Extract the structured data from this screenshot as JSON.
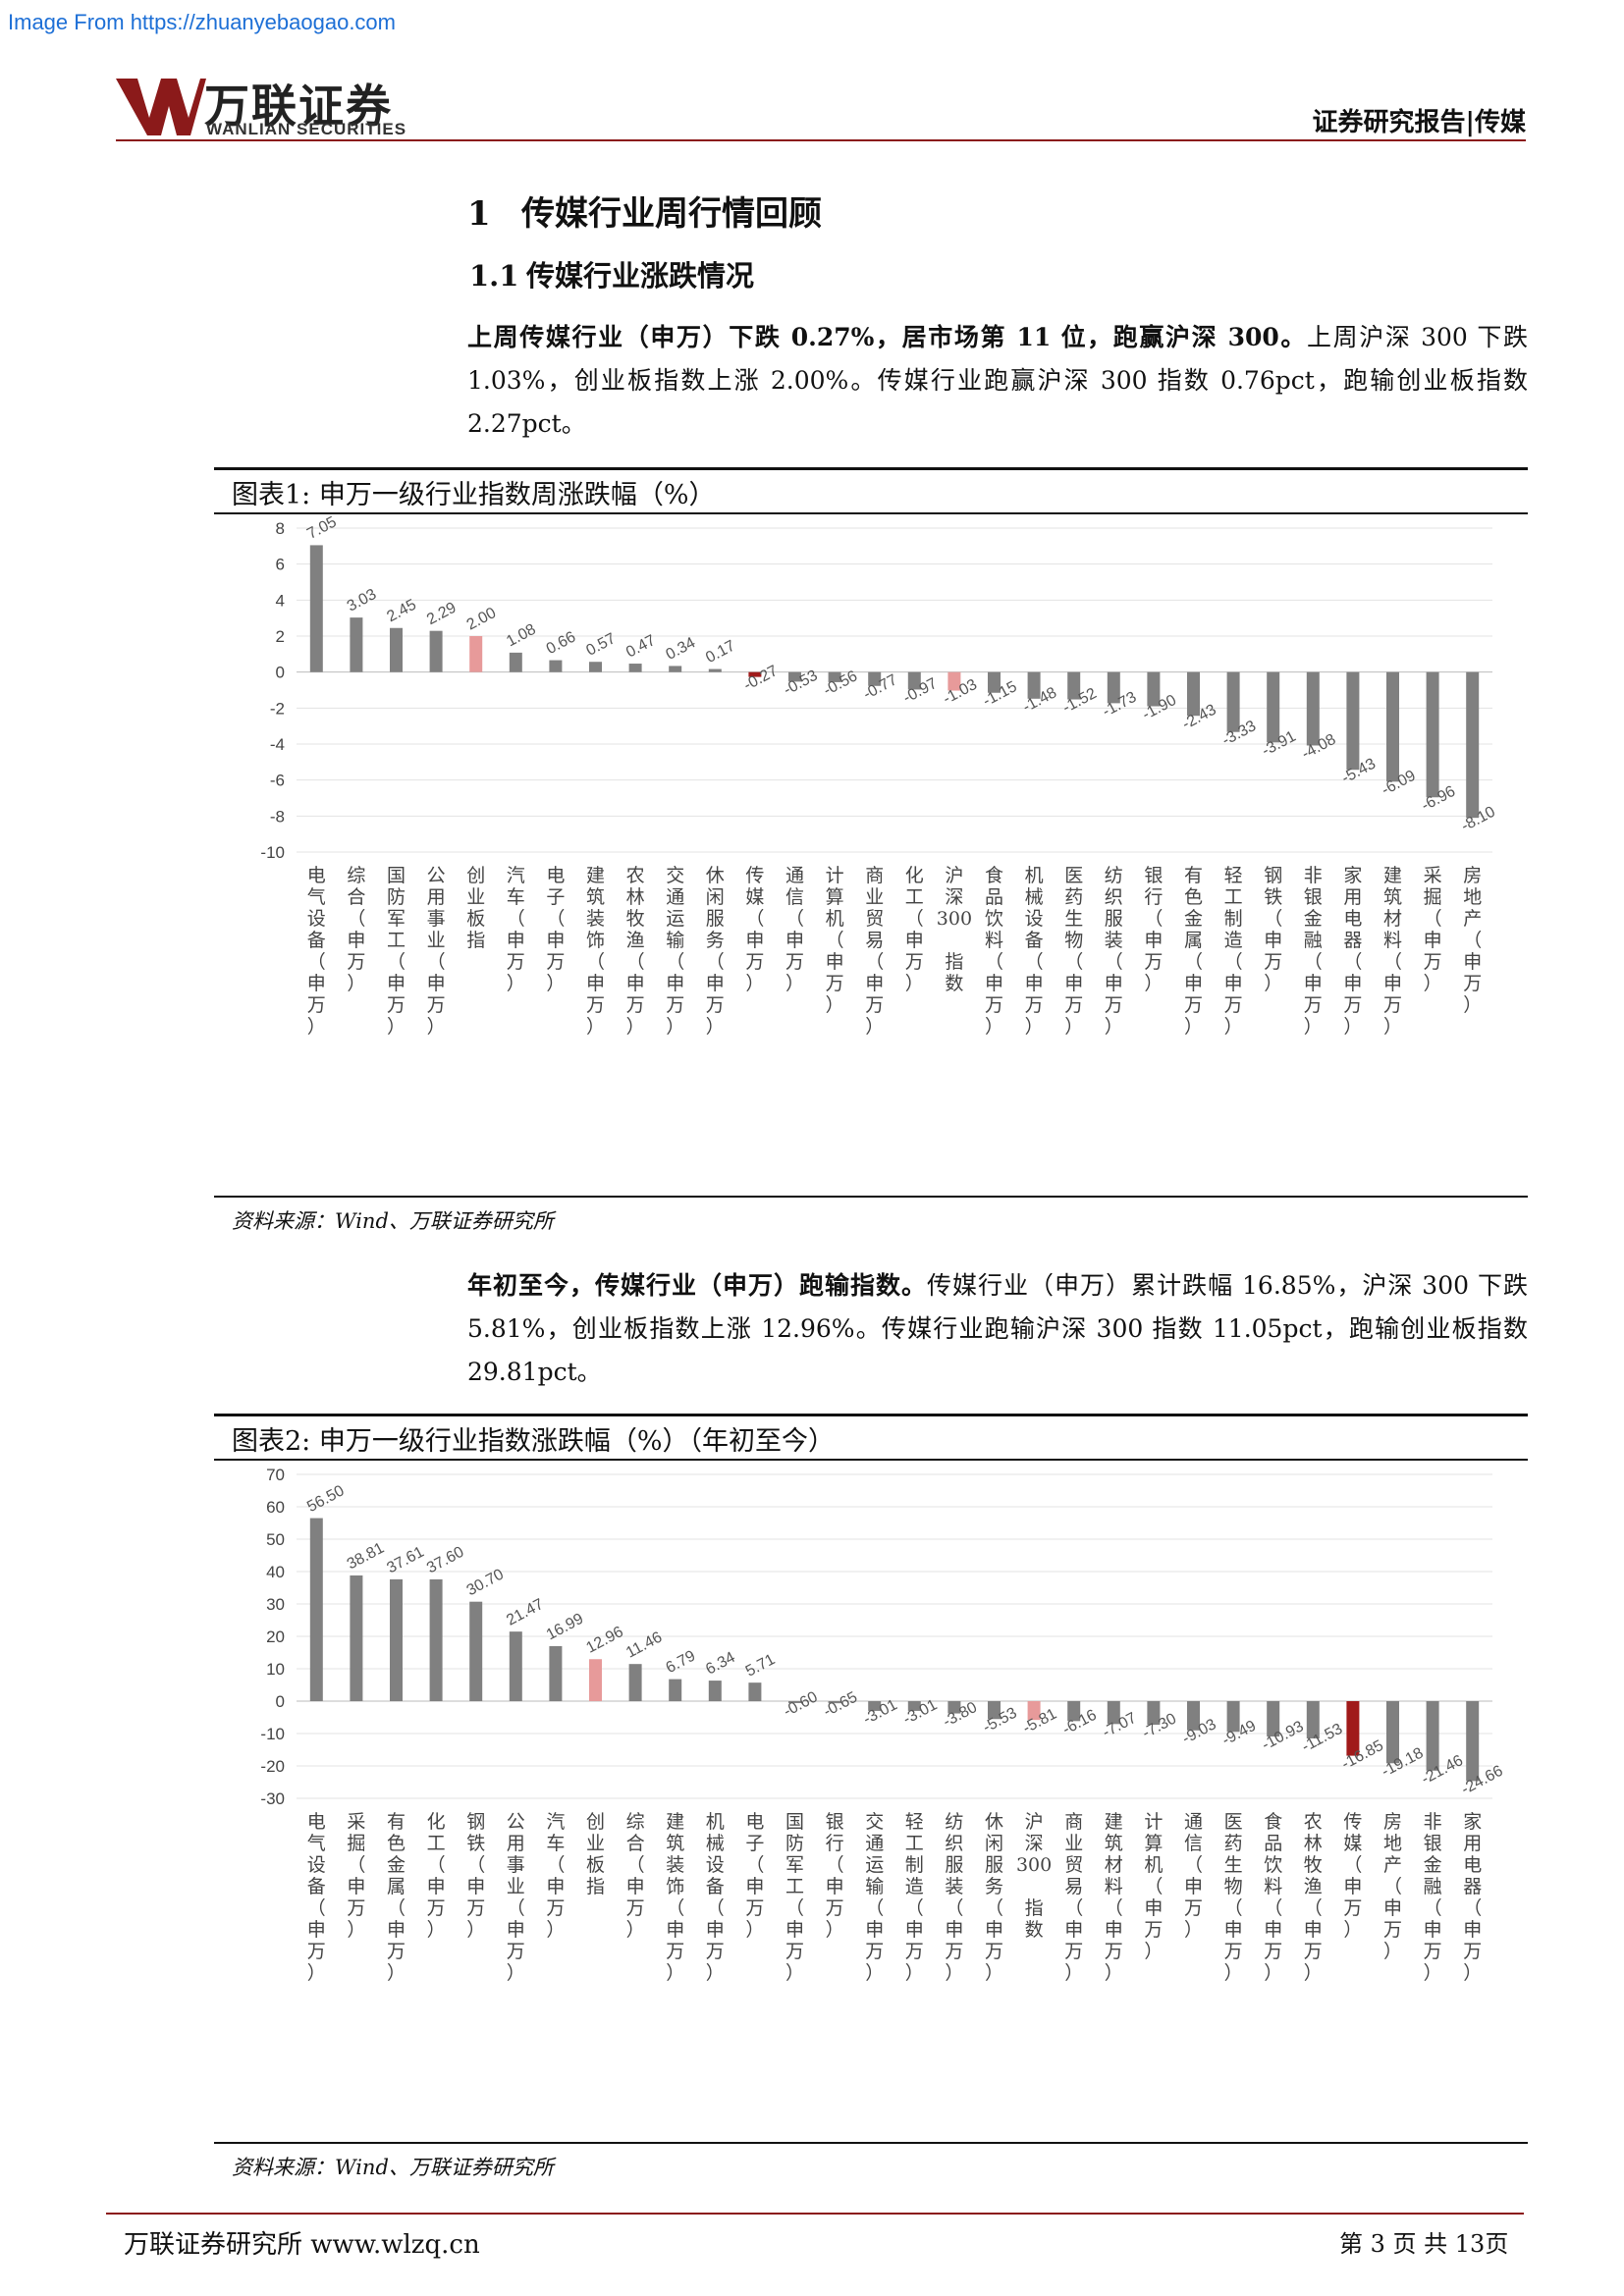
{
  "source_url": "Image From https://zhuanyebaogao.com",
  "brand": {
    "name": "万联证券",
    "name_en": "WANLIAN SECURITIES"
  },
  "header_right": "证券研究报告|传媒",
  "section": {
    "num": "1",
    "title": "传媒行业周行情回顾"
  },
  "subsection": {
    "num": "1.1",
    "title": "传媒行业涨跌情况"
  },
  "para1": {
    "bold": "上周传媒行业（申万）下跌 0.27%，居市场第 11 位，跑赢沪深 300。",
    "text": "上周沪深 300 下跌 1.03%，创业板指数上涨 2.00%。传媒行业跑赢沪深 300 指数 0.76pct，跑输创业板指数 2.27pct。"
  },
  "fig1": {
    "title": "图表1:  申万一级行业指数周涨跌幅（%）",
    "source": "资料来源：Wind、万联证券研究所"
  },
  "para2": {
    "bold": "年初至今，传媒行业（申万）跑输指数。",
    "text": "传媒行业（申万）累计跌幅 16.85%，沪深 300 下跌 5.81%，创业板指数上涨 12.96%。传媒行业跑输沪深 300 指数 11.05pct，跑输创业板指数 29.81pct。"
  },
  "fig2": {
    "title": "图表2:  申万一级行业指数涨跌幅（%）（年初至今）",
    "source": "资料来源：Wind、万联证券研究所"
  },
  "footer": {
    "left": "万联证券研究所 www.wlzq.cn",
    "right": "第 3 页 共 13页"
  },
  "colors": {
    "bar": "#808080",
    "highlight_index": "#e79a9a",
    "highlight_media": "#a01a1a"
  },
  "chart_data": [
    {
      "type": "bar",
      "ylim": [
        -10,
        8
      ],
      "yticks": [
        8,
        6,
        4,
        2,
        0,
        -2,
        -4,
        -6,
        -8,
        -10
      ],
      "grid": true,
      "categories": [
        "电气设备(申万)",
        "综合(申万)",
        "国防军工(申万)",
        "公用事业(申万)",
        "创业板指",
        "汽车(申万)",
        "电子(申万)",
        "建筑装饰(申万)",
        "农林牧渔(申万)",
        "交通运输(申万)",
        "休闲服务(申万)",
        "传媒(申万)",
        "通信(申万)",
        "计算机(申万)",
        "商业贸易(申万)",
        "化工(申万)",
        "沪深300指数",
        "食品饮料(申万)",
        "机械设备(申万)",
        "医药生物(申万)",
        "纺织服装(申万)",
        "银行(申万)",
        "有色金属(申万)",
        "轻工制造(申万)",
        "钢铁(申万)",
        "非银金融(申万)",
        "家用电器(申万)",
        "建筑材料(申万)",
        "采掘(申万)",
        "房地产(申万)"
      ],
      "values": [
        7.05,
        3.03,
        2.45,
        2.29,
        2.0,
        1.08,
        0.66,
        0.57,
        0.47,
        0.34,
        0.17,
        -0.27,
        -0.53,
        -0.56,
        -0.77,
        -0.97,
        -1.03,
        -1.15,
        -1.48,
        -1.52,
        -1.73,
        -1.9,
        -2.43,
        -3.33,
        -3.91,
        -4.08,
        -5.43,
        -6.09,
        -6.96,
        -8.1
      ],
      "labels": [
        "7.05",
        "3.03",
        "2.45",
        "2.29",
        "2.00",
        "1.08",
        "0.66",
        "0.57",
        "0.47",
        "0.34",
        "0.17",
        "-0.27",
        "-0.53",
        "-0.56",
        "-0.77",
        "-0.97",
        "-1.03",
        "-1.15",
        "-1.48",
        "-1.52",
        "-1.73",
        "-1.90",
        "-2.43",
        "-3.33",
        "-3.91",
        "-4.08",
        "-5.43",
        "-6.09",
        "-6.96",
        "-8.10"
      ],
      "highlight": {
        "创业板指": "index",
        "沪深300指数": "index",
        "传媒(申万)": "media"
      }
    },
    {
      "type": "bar",
      "ylim": [
        -30,
        70
      ],
      "yticks": [
        70,
        60,
        50,
        40,
        30,
        20,
        10,
        0,
        -10,
        -20,
        -30
      ],
      "grid": true,
      "categories": [
        "电气设备(申万)",
        "采掘(申万)",
        "有色金属(申万)",
        "化工(申万)",
        "钢铁(申万)",
        "公用事业(申万)",
        "汽车(申万)",
        "创业板指",
        "综合(申万)",
        "建筑装饰(申万)",
        "机械设备(申万)",
        "电子(申万)",
        "国防军工(申万)",
        "银行(申万)",
        "交通运输(申万)",
        "轻工制造(申万)",
        "纺织服装(申万)",
        "休闲服务(申万)",
        "沪深300指数",
        "商业贸易(申万)",
        "建筑材料(申万)",
        "计算机(申万)",
        "通信(申万)",
        "医药生物(申万)",
        "食品饮料(申万)",
        "农林牧渔(申万)",
        "传媒(申万)",
        "房地产(申万)",
        "非银金融(申万)",
        "家用电器(申万)"
      ],
      "values": [
        56.5,
        38.81,
        37.61,
        37.6,
        30.7,
        21.47,
        16.99,
        12.96,
        11.46,
        6.79,
        6.34,
        5.71,
        -0.6,
        -0.65,
        -3.01,
        -3.01,
        -3.8,
        -5.53,
        -5.81,
        -6.16,
        -7.07,
        -7.3,
        -9.03,
        -9.49,
        -10.93,
        -11.53,
        -16.85,
        -19.18,
        -21.46,
        -24.66
      ],
      "labels": [
        "56.50",
        "38.81",
        "37.61",
        "37.60",
        "30.70",
        "21.47",
        "16.99",
        "12.96",
        "11.46",
        "6.79",
        "6.34",
        "5.71",
        "-0.60",
        "-0.65",
        "-3.01",
        "-3.01",
        "-3.80",
        "-5.53",
        "-5.81",
        "-6.16",
        "-7.07",
        "-7.30",
        "-9.03",
        "-9.49",
        "-10.93",
        "-11.53",
        "-16.85",
        "-19.18",
        "-21.46",
        "-24.66"
      ],
      "highlight": {
        "创业板指": "index",
        "沪深300指数": "index",
        "传媒(申万)": "media"
      }
    }
  ]
}
